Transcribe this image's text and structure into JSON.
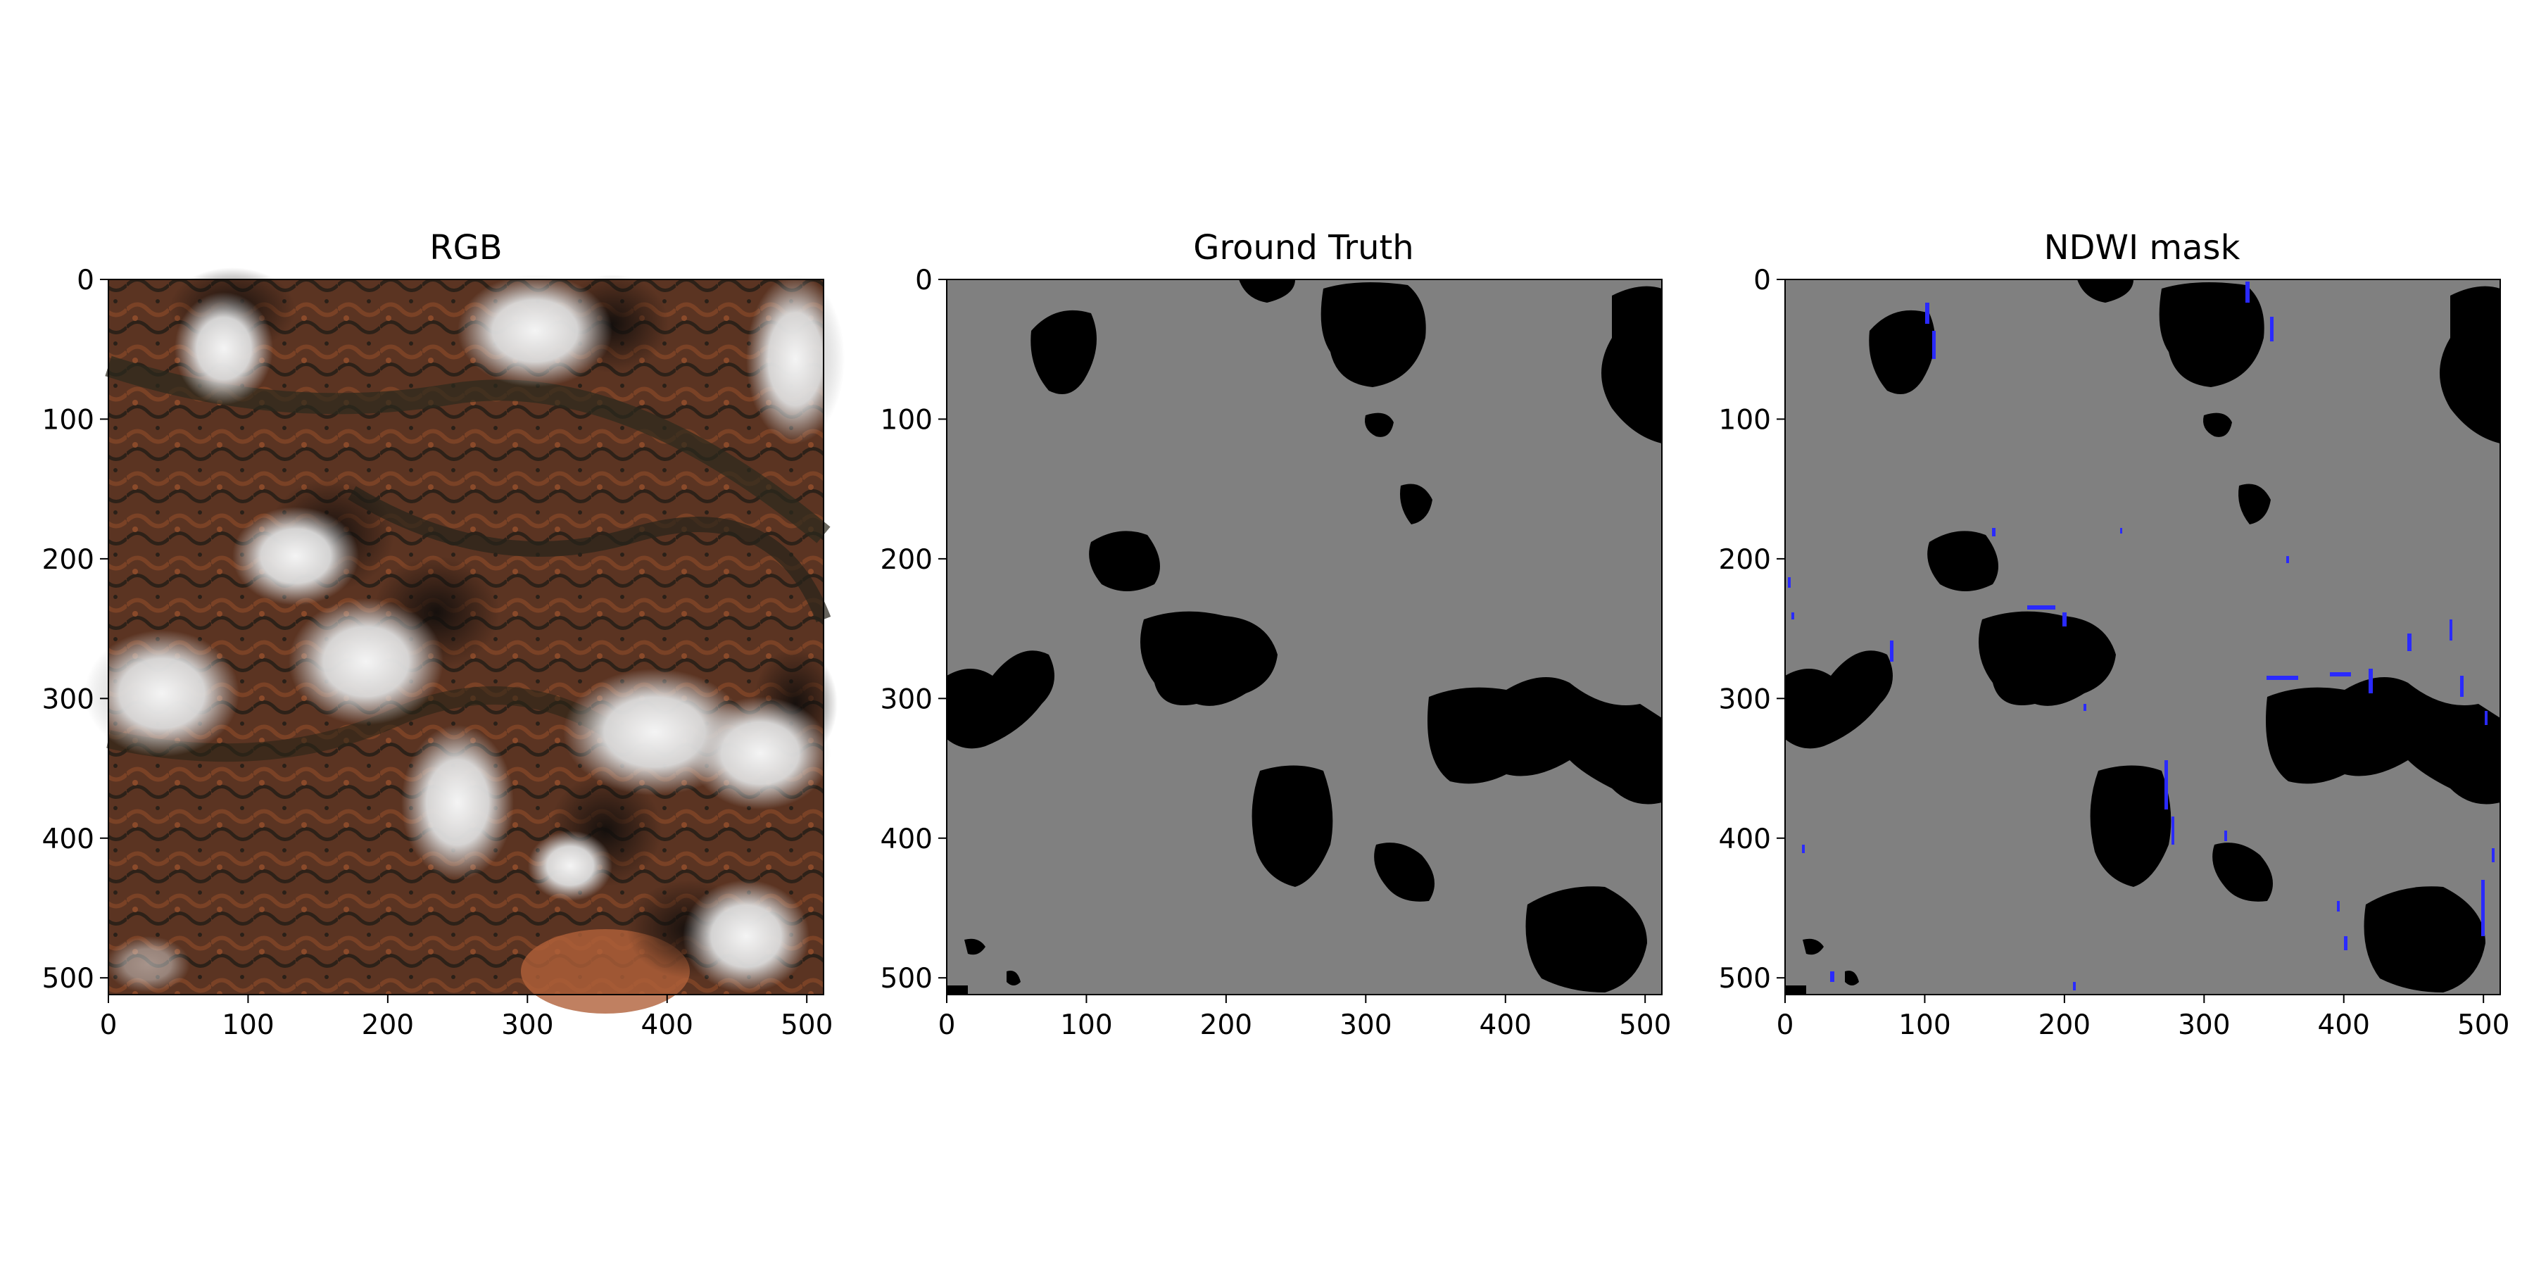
{
  "chart_data": [
    {
      "type": "image",
      "title": "RGB",
      "x_ticks": [
        0,
        100,
        200,
        300,
        400,
        500
      ],
      "y_ticks": [
        0,
        100,
        200,
        300,
        400,
        500
      ],
      "xlim": [
        0,
        512
      ],
      "ylim": [
        512,
        0
      ],
      "colors": {
        "land": "#5a3423",
        "cloud": "#e6e6e6",
        "shadow": "#1a1410"
      }
    },
    {
      "type": "image",
      "title": "Ground Truth",
      "x_ticks": [
        0,
        100,
        200,
        300,
        400,
        500
      ],
      "y_ticks": [
        0,
        100,
        200,
        300,
        400,
        500
      ],
      "xlim": [
        0,
        512
      ],
      "ylim": [
        512,
        0
      ],
      "colors": {
        "background": "#808080",
        "mask": "#000000"
      }
    },
    {
      "type": "image",
      "title": "NDWI mask",
      "x_ticks": [
        0,
        100,
        200,
        300,
        400,
        500
      ],
      "y_ticks": [
        0,
        100,
        200,
        300,
        400,
        500
      ],
      "xlim": [
        0,
        512
      ],
      "ylim": [
        512,
        0
      ],
      "colors": {
        "background": "#808080",
        "mask": "#000000",
        "water": "#2a2aff"
      }
    }
  ]
}
